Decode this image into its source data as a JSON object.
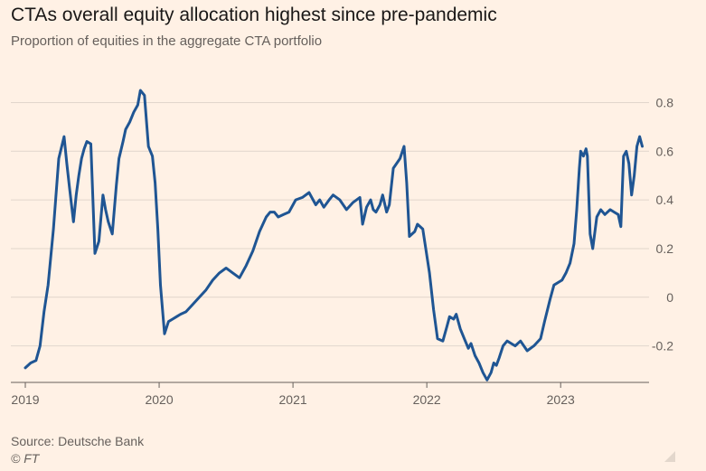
{
  "header": {
    "title": "CTAs overall equity allocation highest since pre-pandemic",
    "subtitle": "Proportion of equities in the aggregate CTA portfolio"
  },
  "footer": {
    "source": "Source: Deutsche Bank",
    "credit": "© FT"
  },
  "chart_data": {
    "type": "line",
    "title": "CTAs overall equity allocation highest since pre-pandemic",
    "subtitle": "Proportion of equities in the aggregate CTA portfolio",
    "xlabel": "",
    "ylabel": "",
    "xlim": [
      2019.0,
      2023.62
    ],
    "ylim": [
      -0.35,
      0.85
    ],
    "x_ticks": [
      2019,
      2020,
      2021,
      2022,
      2023
    ],
    "x_tick_labels": [
      "2019",
      "2020",
      "2021",
      "2022",
      "2023"
    ],
    "y_ticks": [
      0.8,
      0.6,
      0.4,
      0.2,
      0,
      -0.2
    ],
    "y_tick_labels": [
      "0.8",
      "0.6",
      "0.4",
      "0.2",
      "0",
      "-0.2"
    ],
    "grid": "horizontal",
    "legend": "none",
    "colors": {
      "line": "#1f5593",
      "grid": "#e1d6cc",
      "axis": "#66605c",
      "background": "#fff1e5"
    },
    "series": [
      {
        "x": [
          2019.0,
          2019.04,
          2019.08,
          2019.11,
          2019.14,
          2019.17,
          2019.21,
          2019.25,
          2019.29,
          2019.31,
          2019.33,
          2019.36,
          2019.38,
          2019.4,
          2019.42,
          2019.44,
          2019.46,
          2019.49,
          2019.52,
          2019.55,
          2019.58,
          2019.6,
          2019.62,
          2019.65,
          2019.68,
          2019.7,
          2019.73,
          2019.75,
          2019.78,
          2019.81,
          2019.84,
          2019.86,
          2019.89,
          2019.92,
          2019.95,
          2019.97,
          2019.99,
          2020.01,
          2020.04,
          2020.07,
          2020.1,
          2020.13,
          2020.16,
          2020.2,
          2020.25,
          2020.3,
          2020.35,
          2020.4,
          2020.45,
          2020.5,
          2020.55,
          2020.6,
          2020.65,
          2020.7,
          2020.75,
          2020.8,
          2020.83,
          2020.86,
          2020.89,
          2020.93,
          2020.97,
          2021.02,
          2021.07,
          2021.12,
          2021.17,
          2021.2,
          2021.23,
          2021.27,
          2021.3,
          2021.35,
          2021.4,
          2021.45,
          2021.5,
          2021.52,
          2021.55,
          2021.58,
          2021.6,
          2021.62,
          2021.65,
          2021.67,
          2021.7,
          2021.72,
          2021.75,
          2021.8,
          2021.83,
          2021.85,
          2021.87,
          2021.89,
          2021.91,
          2021.93,
          2021.97,
          2022.02,
          2022.05,
          2022.08,
          2022.12,
          2022.15,
          2022.17,
          2022.2,
          2022.22,
          2022.25,
          2022.28,
          2022.31,
          2022.33,
          2022.36,
          2022.39,
          2022.42,
          2022.45,
          2022.48,
          2022.5,
          2022.52,
          2022.54,
          2022.57,
          2022.6,
          2022.63,
          2022.66,
          2022.7,
          2022.75,
          2022.8,
          2022.85,
          2022.88,
          2022.92,
          2022.95,
          2022.98,
          2023.01,
          2023.04,
          2023.07,
          2023.1,
          2023.12,
          2023.14,
          2023.15,
          2023.17,
          2023.19,
          2023.2,
          2023.22,
          2023.24,
          2023.27,
          2023.3,
          2023.33,
          2023.37,
          2023.4,
          2023.43,
          2023.45,
          2023.47,
          2023.49,
          2023.51,
          2023.53,
          2023.55,
          2023.57,
          2023.59,
          2023.61
        ],
        "values": [
          -0.29,
          -0.27,
          -0.26,
          -0.2,
          -0.06,
          0.05,
          0.28,
          0.57,
          0.66,
          0.55,
          0.45,
          0.31,
          0.42,
          0.5,
          0.57,
          0.61,
          0.64,
          0.63,
          0.18,
          0.23,
          0.42,
          0.36,
          0.31,
          0.26,
          0.46,
          0.57,
          0.64,
          0.69,
          0.72,
          0.76,
          0.79,
          0.85,
          0.83,
          0.62,
          0.58,
          0.47,
          0.28,
          0.05,
          -0.15,
          -0.1,
          -0.09,
          -0.08,
          -0.07,
          -0.06,
          -0.03,
          0.0,
          0.03,
          0.07,
          0.1,
          0.12,
          0.1,
          0.08,
          0.13,
          0.19,
          0.27,
          0.33,
          0.35,
          0.35,
          0.33,
          0.34,
          0.35,
          0.4,
          0.41,
          0.43,
          0.38,
          0.4,
          0.37,
          0.4,
          0.42,
          0.4,
          0.36,
          0.39,
          0.41,
          0.3,
          0.37,
          0.4,
          0.36,
          0.35,
          0.38,
          0.42,
          0.35,
          0.38,
          0.53,
          0.57,
          0.62,
          0.47,
          0.25,
          0.26,
          0.27,
          0.3,
          0.28,
          0.1,
          -0.05,
          -0.17,
          -0.18,
          -0.12,
          -0.08,
          -0.09,
          -0.07,
          -0.13,
          -0.17,
          -0.21,
          -0.19,
          -0.24,
          -0.27,
          -0.31,
          -0.34,
          -0.31,
          -0.27,
          -0.28,
          -0.25,
          -0.2,
          -0.18,
          -0.19,
          -0.2,
          -0.18,
          -0.22,
          -0.2,
          -0.17,
          -0.1,
          -0.01,
          0.05,
          0.06,
          0.07,
          0.1,
          0.14,
          0.22,
          0.36,
          0.53,
          0.6,
          0.58,
          0.61,
          0.58,
          0.26,
          0.2,
          0.33,
          0.36,
          0.34,
          0.36,
          0.35,
          0.34,
          0.29,
          0.58,
          0.6,
          0.55,
          0.42,
          0.5,
          0.62,
          0.66,
          0.62
        ]
      }
    ]
  }
}
